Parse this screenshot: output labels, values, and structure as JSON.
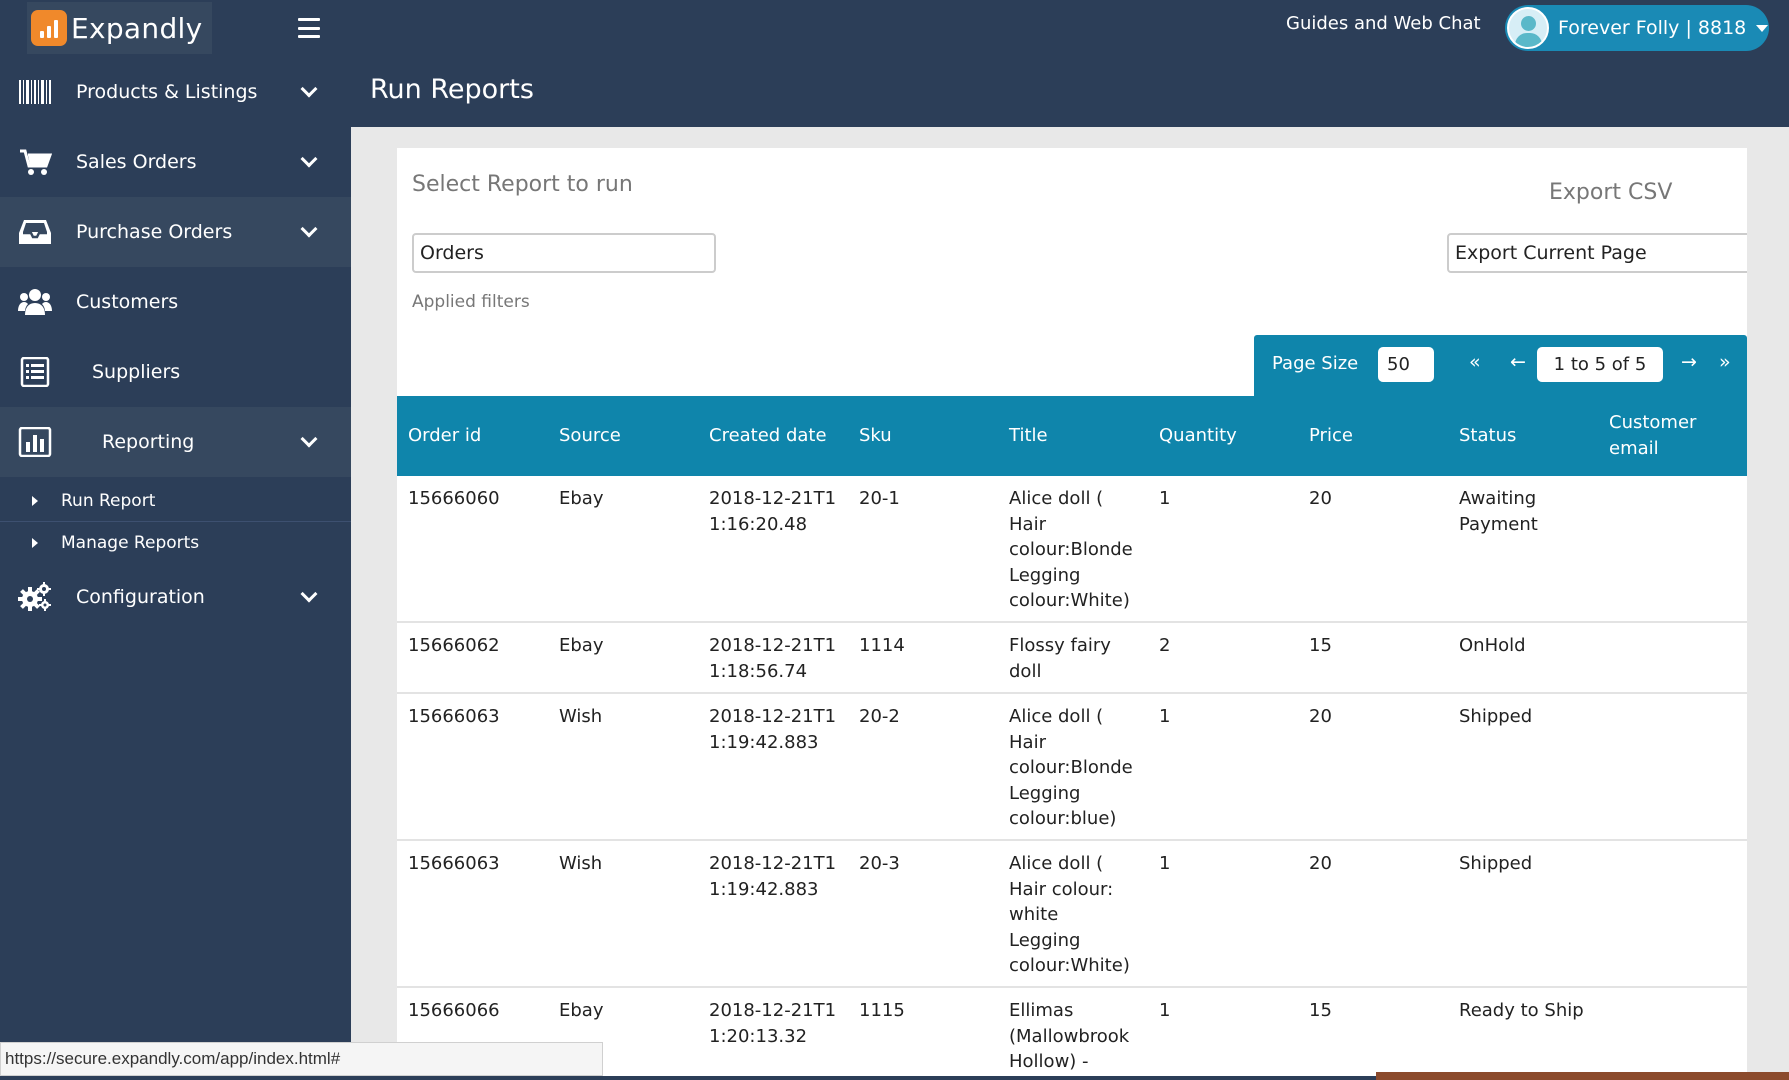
{
  "brand": {
    "name": "Expandly"
  },
  "topbar": {
    "guides_label": "Guides and Web Chat",
    "user_label": "Forever Folly | 8818"
  },
  "sidebar": {
    "items": [
      {
        "label": "Products & Listings",
        "icon": "barcode-icon"
      },
      {
        "label": "Sales Orders",
        "icon": "cart-icon"
      },
      {
        "label": "Purchase Orders",
        "icon": "inbox-icon"
      },
      {
        "label": "Customers",
        "icon": "users-icon"
      },
      {
        "label": "Suppliers",
        "icon": "list-icon"
      },
      {
        "label": "Reporting",
        "icon": "bar-chart-icon"
      },
      {
        "label": "Configuration",
        "icon": "gears-icon"
      }
    ],
    "sub_items": [
      {
        "label": "Run Report"
      },
      {
        "label": "Manage Reports"
      }
    ]
  },
  "page": {
    "title": "Run Reports"
  },
  "report": {
    "select_label": "Select Report to run",
    "export_label": "Export CSV",
    "selected_report": "Orders",
    "export_option": "Export Current Page",
    "applied_filters_label": "Applied filters"
  },
  "pager": {
    "label": "Page Size",
    "page_size": "50",
    "first": "«",
    "prev": "←",
    "range": "1 to 5 of 5",
    "next": "→",
    "last": "»"
  },
  "table": {
    "columns": [
      "Order id",
      "Source",
      "Created date",
      "Sku",
      "Title",
      "Quantity",
      "Price",
      "Status",
      "Customer email"
    ],
    "rows": [
      {
        "order_id": "15666060",
        "source": "Ebay",
        "created": "2018-12-21T11:16:20.48",
        "sku": "20-1",
        "title": "Alice doll ( Hair colour:Blonde Legging colour:White)",
        "quantity": "1",
        "price": "20",
        "status": "Awaiting Payment",
        "email": ""
      },
      {
        "order_id": "15666062",
        "source": "Ebay",
        "created": "2018-12-21T11:18:56.74",
        "sku": "1114",
        "title": "Flossy fairy doll",
        "quantity": "2",
        "price": "15",
        "status": "OnHold",
        "email": ""
      },
      {
        "order_id": "15666063",
        "source": "Wish",
        "created": "2018-12-21T11:19:42.883",
        "sku": "20-2",
        "title": "Alice doll ( Hair colour:Blonde Legging colour:blue)",
        "quantity": "1",
        "price": "20",
        "status": "Shipped",
        "email": ""
      },
      {
        "order_id": "15666063",
        "source": "Wish",
        "created": "2018-12-21T11:19:42.883",
        "sku": "20-3",
        "title": "Alice doll ( Hair colour: white Legging colour:White)",
        "quantity": "1",
        "price": "20",
        "status": "Shipped",
        "email": ""
      },
      {
        "order_id": "15666066",
        "source": "Ebay",
        "created": "2018-12-21T11:20:13.32",
        "sku": "1115",
        "title": "Ellimas (Mallowbrook Hollow) -",
        "quantity": "1",
        "price": "15",
        "status": "Ready to Ship",
        "email": ""
      }
    ]
  },
  "statusbar": {
    "url": "https://secure.expandly.com/app/index.html#"
  },
  "colors": {
    "navy": "#2c3e58",
    "navy_active": "#36485f",
    "teal": "#0f85ab",
    "user_pill": "#1a8ab5",
    "logo_orange": "#f0892b"
  }
}
